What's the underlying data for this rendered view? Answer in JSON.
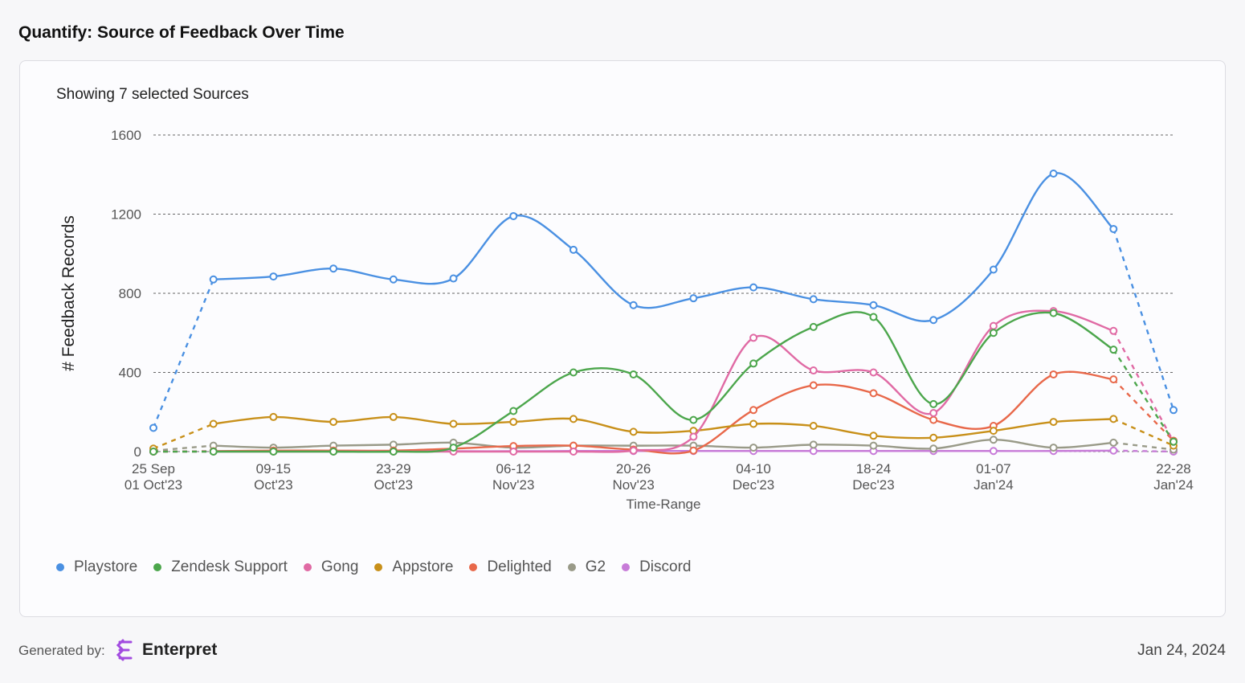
{
  "header": {
    "title": "Quantify: Source of Feedback Over Time"
  },
  "chart_data": {
    "type": "line",
    "subtitle": "Showing 7 selected Sources",
    "y_label": "# Feedback Records",
    "x_label": "Time-Range",
    "categories": [
      "25 Sep\n01 Oct'23",
      null,
      "09-15\nOct'23",
      null,
      "23-29\nOct'23",
      null,
      "06-12\nNov'23",
      null,
      "20-26\nNov'23",
      null,
      "04-10\nDec'23",
      null,
      "18-24\nDec'23",
      null,
      "01-07\nJan'24",
      null,
      null,
      "22-28\nJan'24"
    ],
    "series": [
      {
        "name": "Playstore",
        "color": "#4a90e2",
        "values": [
          120,
          870,
          885,
          925,
          870,
          875,
          1190,
          1020,
          740,
          775,
          830,
          770,
          740,
          665,
          920,
          1405,
          1125,
          210
        ]
      },
      {
        "name": "Zendesk Support",
        "color": "#4ca64c",
        "values": [
          0,
          0,
          0,
          0,
          0,
          20,
          205,
          400,
          390,
          160,
          445,
          630,
          680,
          240,
          600,
          700,
          515,
          50
        ]
      },
      {
        "name": "Gong",
        "color": "#e06aa4",
        "values": [
          0,
          0,
          0,
          0,
          0,
          0,
          0,
          0,
          5,
          75,
          575,
          410,
          400,
          195,
          635,
          710,
          610,
          50
        ]
      },
      {
        "name": "Appstore",
        "color": "#c8901a",
        "values": [
          15,
          140,
          175,
          150,
          175,
          140,
          150,
          165,
          100,
          105,
          140,
          130,
          80,
          70,
          105,
          150,
          165,
          30
        ]
      },
      {
        "name": "Delighted",
        "color": "#e8684a",
        "values": [
          0,
          2,
          5,
          5,
          5,
          15,
          28,
          30,
          10,
          5,
          210,
          335,
          295,
          160,
          130,
          390,
          365,
          55
        ]
      },
      {
        "name": "G2",
        "color": "#999a88",
        "values": [
          5,
          30,
          20,
          30,
          35,
          45,
          20,
          30,
          30,
          30,
          20,
          35,
          30,
          15,
          60,
          20,
          45,
          10
        ]
      },
      {
        "name": "Discord",
        "color": "#c77bd8",
        "values": [
          0,
          2,
          2,
          2,
          2,
          2,
          2,
          3,
          3,
          3,
          3,
          3,
          3,
          3,
          3,
          3,
          5,
          0
        ]
      }
    ],
    "ylim": [
      0,
      1600
    ],
    "yticks": [
      0,
      400,
      800,
      1200,
      1600
    ],
    "grid": true,
    "smooth": true,
    "dashed_ends": true,
    "legend": "bottom"
  },
  "footer": {
    "generated_by": "Generated by:",
    "brand": "Enterpret",
    "date": "Jan 24, 2024"
  }
}
